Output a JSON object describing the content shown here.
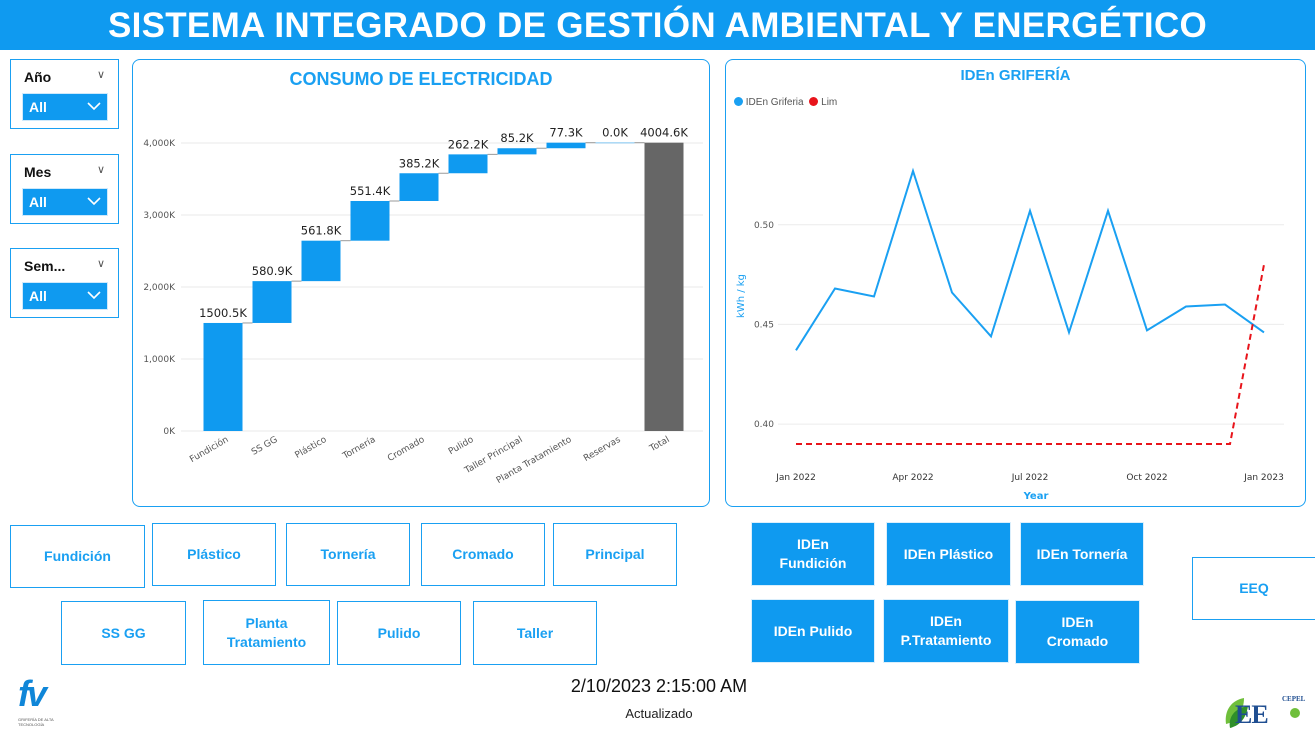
{
  "header": {
    "title": "SISTEMA INTEGRADO DE GESTIÓN AMBIENTAL Y ENERGÉTICO"
  },
  "filters": [
    {
      "label": "Año",
      "value": "All"
    },
    {
      "label": "Mes",
      "value": "All"
    },
    {
      "label": "Sem...",
      "value": "All"
    }
  ],
  "consumo": {
    "title": "CONSUMO DE ELECTRICIDAD"
  },
  "grif": {
    "title": "IDEn GRIFERÍA",
    "legend": [
      "IDEn Griferia",
      "Lim"
    ]
  },
  "nav_buttons": [
    "Fundición",
    "Plástico",
    "Tornería",
    "Cromado",
    "Principal",
    "SS GG",
    "Planta Tratamiento",
    "Pulido",
    "Taller"
  ],
  "iden_buttons": [
    "IDEn Fundición",
    "IDEn Plástico",
    "IDEn Tornería",
    "IDEn Pulido",
    "IDEn P.Tratamiento",
    "IDEn Cromado"
  ],
  "eeq_button": "EEQ",
  "footer": {
    "timestamp": "2/10/2023 2:15:00 AM",
    "updated_label": "Actualizado",
    "logo_left": "fv",
    "logo_left_sub": "GRIFERÍA DE ALTA TECNOLOGÍA",
    "logo_right": "EE",
    "logo_right_sub": "CEPEL"
  },
  "colors": {
    "accent": "#0f9af0",
    "total_bar": "#666666",
    "limit_line": "#e8141b"
  },
  "chart_data": [
    {
      "type": "bar",
      "subtype": "waterfall",
      "title": "CONSUMO DE ELECTRICIDAD",
      "categories": [
        "Fundición",
        "SS GG",
        "Plástico",
        "Tornería",
        "Cromado",
        "Pulido",
        "Taller Principal",
        "Planta Tratamiento",
        "Reservas",
        "Total"
      ],
      "values": [
        1500.5,
        580.9,
        561.8,
        551.4,
        385.2,
        262.2,
        85.2,
        77.3,
        0.0,
        4004.6
      ],
      "data_labels": [
        "1500.5K",
        "580.9K",
        "561.8K",
        "551.4K",
        "385.2K",
        "262.2K",
        "85.2K",
        "77.3K",
        "0.0K",
        "4004.6K"
      ],
      "yticks": [
        "0K",
        "1,000K",
        "2,000K",
        "3,000K",
        "4,000K"
      ],
      "ylim": [
        0,
        4200
      ],
      "grid": true
    },
    {
      "type": "line",
      "title": "IDEn GRIFERÍA",
      "xlabel": "Year",
      "ylabel": "kWh / kg",
      "xticks": [
        "Jan 2022",
        "Apr 2022",
        "Jul 2022",
        "Oct 2022",
        "Jan 2023"
      ],
      "yticks": [
        "0.40",
        "0.45",
        "0.50"
      ],
      "ylim": [
        0.39,
        0.535
      ],
      "x": [
        "2022-01",
        "2022-02",
        "2022-03",
        "2022-04",
        "2022-05",
        "2022-06",
        "2022-07",
        "2022-08",
        "2022-09",
        "2022-10",
        "2022-11",
        "2022-12",
        "2023-01"
      ],
      "series": [
        {
          "name": "IDEn Griferia",
          "color": "#1aa0f2",
          "style": "solid",
          "values": [
            0.437,
            0.468,
            0.464,
            0.527,
            0.466,
            0.444,
            0.507,
            0.446,
            0.507,
            0.447,
            0.459,
            0.46,
            0.446
          ]
        },
        {
          "name": "Lim",
          "color": "#e8141b",
          "style": "dashed",
          "values": [
            0.39,
            0.39,
            0.39,
            0.39,
            0.39,
            0.39,
            0.39,
            0.39,
            0.39,
            0.39,
            0.39,
            0.39,
            0.48
          ]
        }
      ],
      "legend_position": "top-left",
      "grid": true
    }
  ]
}
